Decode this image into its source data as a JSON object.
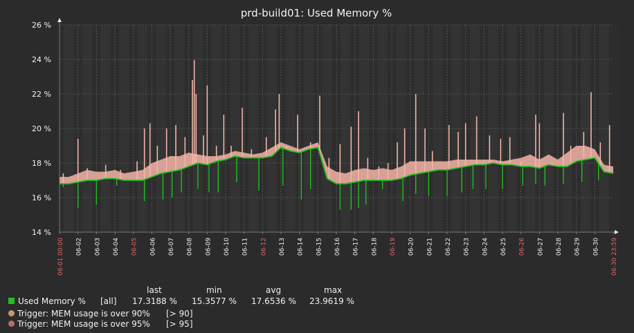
{
  "colors": {
    "background": "#2b2b2b",
    "plot_background": "#333333",
    "grid": "#555555",
    "axis": "#7a7a7a",
    "text": "#f2f2f2",
    "highlight_date": "#e06767",
    "series_line": "#1fbf1f",
    "series_swatch": "#1ec21e",
    "max_fill": "#f5b5a8",
    "trigger_90": "#c59870",
    "trigger_95": "#b86e6e"
  },
  "chart_data": {
    "type": "line",
    "title": "prd-build01: Used Memory %",
    "y_axis": {
      "min": 14,
      "max": 26,
      "step": 2,
      "tick_labels": [
        "14 %",
        "16 %",
        "18 %",
        "20 %",
        "22 %",
        "24 %",
        "26 %"
      ]
    },
    "x_axis": {
      "start_label": "06-01 00:00",
      "end_label": "06-30 23:59",
      "day_labels": [
        "06-02",
        "06-03",
        "06-04",
        "06-05",
        "06-06",
        "06-07",
        "06-08",
        "06-09",
        "06-10",
        "06-11",
        "06-12",
        "06-13",
        "06-14",
        "06-15",
        "06-16",
        "06-17",
        "06-18",
        "06-19",
        "06-20",
        "06-21",
        "06-22",
        "06-23",
        "06-24",
        "06-25",
        "06-26",
        "06-27",
        "06-28",
        "06-29",
        "06-30"
      ],
      "highlighted_labels": [
        "06-01 00:00",
        "06-05",
        "06-12",
        "06-19",
        "06-26",
        "06-30 23:59"
      ]
    },
    "grid": true,
    "series": [
      {
        "name": "Used Memory %",
        "x_days": [
          0,
          0.5,
          1,
          1.5,
          2,
          2.5,
          3,
          3.5,
          4,
          4.5,
          5,
          5.5,
          6,
          6.5,
          7,
          7.5,
          8,
          8.5,
          9,
          9.5,
          10,
          10.5,
          11,
          11.5,
          12,
          12.5,
          13,
          13.5,
          14,
          14.5,
          15,
          15.5,
          16,
          16.5,
          17,
          17.5,
          18,
          18.5,
          19,
          19.5,
          20,
          20.5,
          21,
          21.5,
          22,
          22.5,
          23,
          23.5,
          24,
          24.5,
          25,
          25.5,
          26,
          26.5,
          27,
          27.5,
          28,
          28.5,
          29,
          29.5,
          30
        ],
        "avg": [
          16.8,
          16.8,
          16.9,
          17.0,
          17.0,
          17.1,
          17.1,
          17.0,
          17.0,
          17.0,
          17.2,
          17.4,
          17.5,
          17.6,
          17.8,
          18.0,
          17.9,
          18.1,
          18.2,
          18.4,
          18.3,
          18.3,
          18.3,
          18.4,
          18.9,
          18.7,
          18.6,
          18.8,
          18.9,
          17.1,
          16.8,
          16.8,
          16.9,
          17.0,
          17.0,
          17.0,
          17.0,
          17.1,
          17.3,
          17.4,
          17.5,
          17.6,
          17.6,
          17.7,
          17.8,
          17.9,
          17.9,
          18.0,
          17.9,
          17.9,
          17.8,
          17.8,
          17.7,
          17.9,
          17.8,
          17.8,
          18.1,
          18.2,
          18.3,
          17.5,
          17.4
        ],
        "max": [
          17.2,
          17.2,
          17.4,
          17.6,
          17.5,
          17.5,
          17.6,
          17.4,
          17.5,
          17.6,
          18.0,
          18.2,
          18.4,
          18.4,
          18.6,
          18.5,
          18.4,
          18.4,
          18.5,
          18.7,
          18.6,
          18.5,
          18.6,
          18.9,
          19.2,
          19.0,
          18.8,
          19.0,
          19.2,
          17.8,
          17.5,
          17.4,
          17.6,
          17.7,
          17.6,
          17.7,
          17.6,
          17.8,
          18.1,
          18.1,
          18.1,
          18.1,
          18.1,
          18.2,
          18.2,
          18.2,
          18.2,
          18.2,
          18.1,
          18.2,
          18.3,
          18.5,
          18.2,
          18.5,
          18.2,
          18.6,
          19.0,
          19.0,
          18.8,
          17.9,
          17.8
        ],
        "max_spikes": [
          [
            0.2,
            17.4
          ],
          [
            1.0,
            19.4
          ],
          [
            1.5,
            17.7
          ],
          [
            2.5,
            17.9
          ],
          [
            3.3,
            17.6
          ],
          [
            4.2,
            18.1
          ],
          [
            4.6,
            20.0
          ],
          [
            4.9,
            20.3
          ],
          [
            5.3,
            19.0
          ],
          [
            5.8,
            20.0
          ],
          [
            6.3,
            20.2
          ],
          [
            6.8,
            19.5
          ],
          [
            7.2,
            22.8
          ],
          [
            7.3,
            23.96
          ],
          [
            7.4,
            22.0
          ],
          [
            7.8,
            19.6
          ],
          [
            8.0,
            22.5
          ],
          [
            8.5,
            19.0
          ],
          [
            8.9,
            20.8
          ],
          [
            9.3,
            19.0
          ],
          [
            9.9,
            21.2
          ],
          [
            10.4,
            18.8
          ],
          [
            11.2,
            19.5
          ],
          [
            11.7,
            21.1
          ],
          [
            11.9,
            22.0
          ],
          [
            12.3,
            19.0
          ],
          [
            12.9,
            20.8
          ],
          [
            13.6,
            19.2
          ],
          [
            14.1,
            21.9
          ],
          [
            14.6,
            18.3
          ],
          [
            15.2,
            19.1
          ],
          [
            15.8,
            20.1
          ],
          [
            16.2,
            21.0
          ],
          [
            16.7,
            18.3
          ],
          [
            17.3,
            17.8
          ],
          [
            17.8,
            18.0
          ],
          [
            18.3,
            19.2
          ],
          [
            18.7,
            20.0
          ],
          [
            19.3,
            22.0
          ],
          [
            19.8,
            20.0
          ],
          [
            20.2,
            18.7
          ],
          [
            21.1,
            20.2
          ],
          [
            21.6,
            19.8
          ],
          [
            22.0,
            20.3
          ],
          [
            22.6,
            20.7
          ],
          [
            23.3,
            19.6
          ],
          [
            23.9,
            19.4
          ],
          [
            24.4,
            19.5
          ],
          [
            25.0,
            18.1
          ],
          [
            25.8,
            20.8
          ],
          [
            26.0,
            20.3
          ],
          [
            26.7,
            18.0
          ],
          [
            27.3,
            20.9
          ],
          [
            27.7,
            19.0
          ],
          [
            28.4,
            19.8
          ],
          [
            28.8,
            22.1
          ],
          [
            29.3,
            19.2
          ],
          [
            29.8,
            20.2
          ]
        ],
        "min_dips": [
          [
            0.2,
            16.6
          ],
          [
            1.0,
            15.4
          ],
          [
            2.0,
            15.6
          ],
          [
            3.1,
            16.7
          ],
          [
            4.6,
            15.8
          ],
          [
            5.6,
            15.9
          ],
          [
            6.1,
            16.0
          ],
          [
            6.6,
            16.3
          ],
          [
            7.5,
            16.5
          ],
          [
            8.1,
            16.3
          ],
          [
            8.6,
            16.3
          ],
          [
            9.6,
            16.9
          ],
          [
            10.8,
            16.4
          ],
          [
            12.1,
            16.7
          ],
          [
            13.1,
            15.9
          ],
          [
            13.6,
            16.5
          ],
          [
            15.2,
            15.3
          ],
          [
            15.8,
            15.3
          ],
          [
            16.2,
            15.4
          ],
          [
            16.6,
            15.6
          ],
          [
            17.5,
            16.5
          ],
          [
            18.6,
            15.8
          ],
          [
            19.3,
            16.2
          ],
          [
            20.0,
            16.1
          ],
          [
            21.0,
            16.1
          ],
          [
            21.8,
            16.3
          ],
          [
            22.4,
            16.5
          ],
          [
            23.1,
            16.5
          ],
          [
            24.0,
            16.5
          ],
          [
            25.1,
            16.7
          ],
          [
            25.8,
            16.8
          ],
          [
            26.3,
            16.7
          ],
          [
            27.3,
            16.8
          ],
          [
            28.3,
            16.9
          ],
          [
            29.2,
            17.0
          ]
        ]
      }
    ]
  },
  "legend": {
    "headers": [
      "last",
      "min",
      "avg",
      "max"
    ],
    "series_row": {
      "name": "Used Memory %",
      "func": "[all]",
      "last": "17.3188 %",
      "min": "15.3577 %",
      "avg": "17.6536 %",
      "max": "23.9619 %"
    },
    "triggers": [
      {
        "label": "Trigger: MEM usage is over 90%",
        "threshold": "[> 90]"
      },
      {
        "label": "Trigger: MEM usage is over 95%",
        "threshold": "[> 95]"
      }
    ]
  }
}
